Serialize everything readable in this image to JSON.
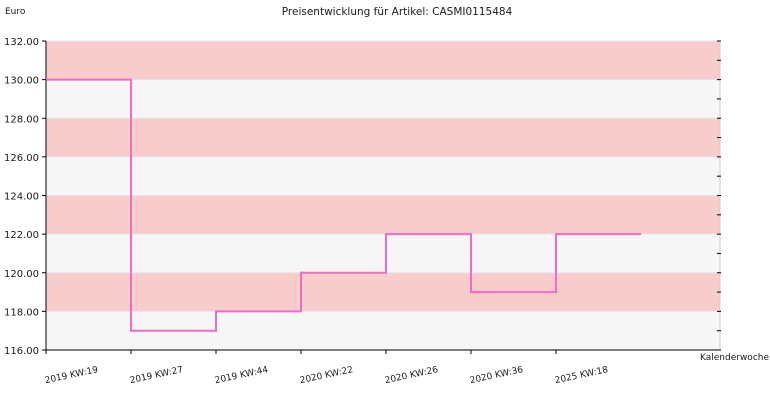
{
  "chart_data": {
    "type": "line",
    "title": "Preisentwicklung für Artikel: CASMI0115484",
    "ylabel": "Euro",
    "xlabel": "Kalenderwoche",
    "ylim": [
      116,
      132
    ],
    "yticks": [
      "116.00",
      "118.00",
      "120.00",
      "122.00",
      "124.00",
      "126.00",
      "128.00",
      "130.00",
      "132.00"
    ],
    "categories": [
      "2019 KW:19",
      "2019 KW:27",
      "2019 KW:44",
      "2020 KW:22",
      "2020 KW:26",
      "2020 KW:36",
      "2025 KW:18"
    ],
    "step": true,
    "grid": true,
    "series": [
      {
        "values": [
          130,
          117,
          118,
          120,
          122,
          119,
          122
        ]
      }
    ],
    "colors": {
      "line": "#ef6cc8",
      "band_a": "#f9cccc",
      "band_b": "#f6f6f6",
      "axis": "#000000"
    }
  }
}
